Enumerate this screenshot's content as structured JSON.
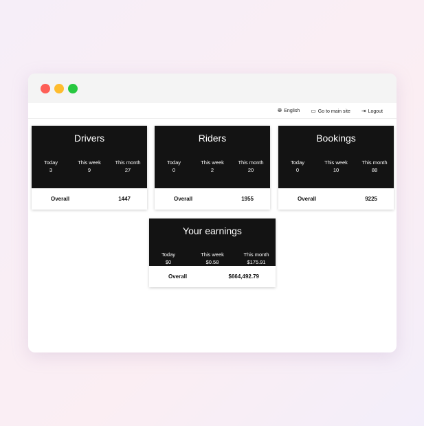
{
  "window_controls": {
    "close": "#fe5f57",
    "minimize": "#febc2e",
    "maximize": "#28c840"
  },
  "nav": {
    "language": "English",
    "main_site": "Go to main site",
    "logout": "Logout"
  },
  "cards": [
    {
      "title": "Drivers",
      "today_label": "Today",
      "today": "3",
      "week_label": "This week",
      "week": "9",
      "month_label": "This month",
      "month": "27",
      "overall_label": "Overall",
      "overall": "1447"
    },
    {
      "title": "Riders",
      "today_label": "Today",
      "today": "0",
      "week_label": "This week",
      "week": "2",
      "month_label": "This month",
      "month": "20",
      "overall_label": "Overall",
      "overall": "1955"
    },
    {
      "title": "Bookings",
      "today_label": "Today",
      "today": "0",
      "week_label": "This week",
      "week": "10",
      "month_label": "This month",
      "month": "88",
      "overall_label": "Overall",
      "overall": "9225"
    },
    {
      "title": "Your earnings",
      "today_label": "Today",
      "today": "$0",
      "week_label": "This week",
      "week": "$0.58",
      "month_label": "This month",
      "month": "$175.91",
      "overall_label": "Overall",
      "overall": "$664,492.79"
    }
  ]
}
